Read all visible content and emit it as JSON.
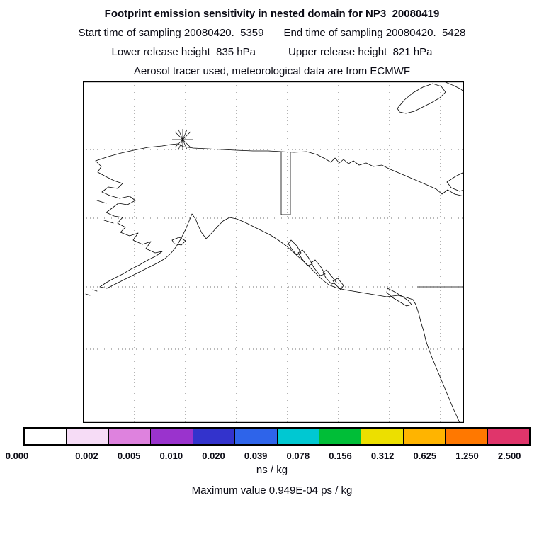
{
  "header": {
    "title": "Footprint emission sensitivity in nested domain for NP3_20080419",
    "start_time": "Start time of sampling 20080420.  5359",
    "end_time": "End time of sampling 20080420.  5428",
    "lower_release": "Lower release height  835 hPa",
    "upper_release": "Upper release height  821 hPa",
    "tracer_line": "Aerosol tracer used, meteorological data are from ECMWF"
  },
  "map": {
    "marker": "release-location-star",
    "features": [
      "coastlines",
      "lat-lon-gridlines",
      "alaska-canada-border",
      "us-canada-border"
    ]
  },
  "colorbar": {
    "levels": [
      "0.000",
      "0.002",
      "0.005",
      "0.010",
      "0.020",
      "0.039",
      "0.078",
      "0.156",
      "0.312",
      "0.625",
      "1.250",
      "2.500"
    ],
    "colors": [
      "#ffffff",
      "#f6dcf6",
      "#de82de",
      "#9a33cd",
      "#3333cc",
      "#2e64ea",
      "#00c8d2",
      "#00be37",
      "#ecdf00",
      "#ffb400",
      "#ff7800",
      "#e0356b"
    ],
    "units": "ns / kg"
  },
  "footer": {
    "max_value_line": "Maximum value  0.949E-04 ps / kg"
  },
  "chart_data": {
    "type": "heatmap",
    "title": "Footprint emission sensitivity in nested domain for NP3_20080419",
    "start_time": "20080420. 5359",
    "end_time": "20080420. 5428",
    "lower_release_height_hPa": 835,
    "upper_release_height_hPa": 821,
    "tracer": "Aerosol tracer used, meteorological data are from ECMWF",
    "colorbar_levels": [
      0.0,
      0.002,
      0.005,
      0.01,
      0.02,
      0.039,
      0.078,
      0.156,
      0.312,
      0.625,
      1.25,
      2.5
    ],
    "colorbar_unit": "ns / kg",
    "maximum_value": "0.949E-04 ps / kg",
    "legend_position": "bottom",
    "grid": "dotted lat/lon gridlines over map",
    "notes": "Map of Alaska and northwestern North America with coastlines; sensitivity field below lowest contour level so map area renders white; release location marked with an asterisk star near the northern Alaska coast."
  }
}
